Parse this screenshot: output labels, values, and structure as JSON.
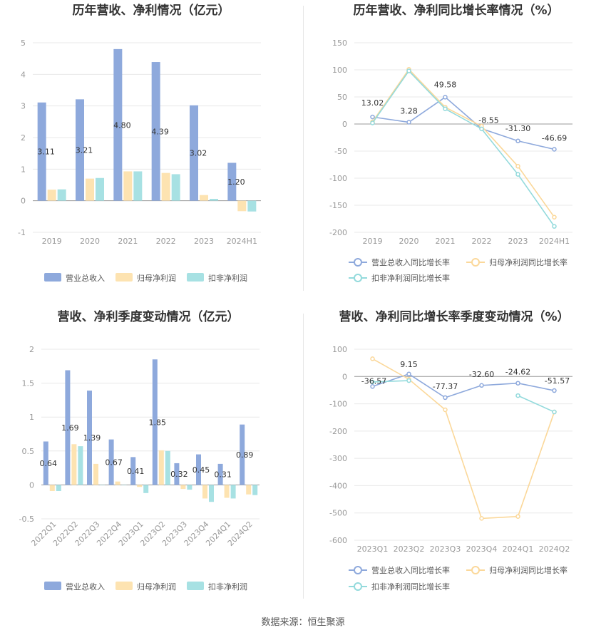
{
  "footer": "数据来源：恒生聚源",
  "colors": {
    "revenue": "#8ea9dc",
    "net_profit": "#fde3b1",
    "deducted_profit": "#a7e1e3",
    "revenue_line": "#8ea9dc",
    "net_line": "#fbd89a",
    "deducted_line": "#93dadc"
  },
  "chart_data": [
    {
      "id": "annual_bar",
      "type": "bar",
      "title": "历年营收、净利情况（亿元）",
      "categories": [
        "2019",
        "2020",
        "2021",
        "2022",
        "2023",
        "2024H1"
      ],
      "series": [
        {
          "name": "营业总收入",
          "values": [
            3.11,
            3.21,
            4.8,
            4.39,
            3.02,
            1.2
          ],
          "labels": [
            "3.11",
            "3.21",
            "4.80",
            "4.39",
            "3.02",
            "1.20"
          ]
        },
        {
          "name": "归母净利润",
          "values": [
            0.35,
            0.7,
            0.93,
            0.88,
            0.18,
            -0.33
          ]
        },
        {
          "name": "扣非净利润",
          "values": [
            0.36,
            0.72,
            0.93,
            0.84,
            0.06,
            -0.34
          ]
        }
      ],
      "ylim": [
        -1,
        5
      ],
      "yticks": [
        "-1",
        "0",
        "1",
        "2",
        "3",
        "4",
        "5"
      ]
    },
    {
      "id": "annual_growth",
      "type": "line",
      "title": "历年营收、净利同比增长率情况（%）",
      "categories": [
        "2019",
        "2020",
        "2021",
        "2022",
        "2023",
        "2024H1"
      ],
      "series": [
        {
          "name": "营业总收入同比增长率",
          "values": [
            13.02,
            3.28,
            49.58,
            -8.55,
            -31.3,
            -46.69
          ],
          "labels": [
            "13.02",
            "3.28",
            "49.58",
            "-8.55",
            "-31.30",
            "-46.69"
          ]
        },
        {
          "name": "归母净利润同比增长率",
          "values": [
            4,
            101,
            31,
            -4,
            -78,
            -172
          ]
        },
        {
          "name": "扣非净利润同比增长率",
          "values": [
            2,
            98,
            28,
            -9,
            -93,
            -189
          ]
        }
      ],
      "ylim": [
        -200,
        150
      ],
      "yticks": [
        "-200",
        "-150",
        "-100",
        "-50",
        "0",
        "50",
        "100",
        "150"
      ]
    },
    {
      "id": "quarterly_bar",
      "type": "bar",
      "title": "营收、净利季度变动情况（亿元）",
      "categories": [
        "2022Q1",
        "2022Q2",
        "2022Q3",
        "2022Q4",
        "2023Q1",
        "2023Q2",
        "2023Q3",
        "2023Q4",
        "2024Q1",
        "2024Q2"
      ],
      "series": [
        {
          "name": "营业总收入",
          "values": [
            0.64,
            1.69,
            1.39,
            0.67,
            0.41,
            1.85,
            0.32,
            0.45,
            0.31,
            0.89
          ],
          "labels": [
            "0.64",
            "1.69",
            "1.39",
            "0.67",
            "0.41",
            "1.85",
            "0.32",
            "0.45",
            "0.31",
            "0.89"
          ]
        },
        {
          "name": "归母净利润",
          "values": [
            -0.09,
            0.6,
            0.31,
            0.05,
            -0.03,
            0.51,
            -0.06,
            -0.2,
            -0.19,
            -0.14
          ]
        },
        {
          "name": "扣非净利润",
          "values": [
            -0.09,
            0.57,
            0.0,
            0.0,
            -0.12,
            0.5,
            -0.07,
            -0.25,
            -0.2,
            -0.15
          ]
        }
      ],
      "ylim": [
        -0.5,
        2
      ],
      "yticks": [
        "-0.5",
        "0",
        "0.5",
        "1",
        "1.5",
        "2"
      ]
    },
    {
      "id": "quarterly_growth",
      "type": "line",
      "title": "营收、净利同比增长率季度变动情况（%）",
      "categories": [
        "2023Q1",
        "2023Q2",
        "2023Q3",
        "2023Q4",
        "2024Q1",
        "2024Q2"
      ],
      "series": [
        {
          "name": "营业总收入同比增长率",
          "values": [
            -36.57,
            9.15,
            -77.37,
            -32.6,
            -24.62,
            -51.57
          ],
          "labels": [
            "-36.57",
            "9.15",
            "-77.37",
            "-32.60",
            "-24.62",
            "-51.57"
          ]
        },
        {
          "name": "归母净利润同比增长率",
          "values": [
            65,
            -10,
            -122,
            -520,
            -513,
            -130
          ]
        },
        {
          "name": "扣非净利润同比增长率",
          "values": [
            -20,
            -15,
            null,
            null,
            -70,
            -130
          ]
        }
      ],
      "ylim": [
        -600,
        100
      ],
      "yticks": [
        "-600",
        "-500",
        "-400",
        "-300",
        "-200",
        "-100",
        "0",
        "100"
      ]
    }
  ]
}
